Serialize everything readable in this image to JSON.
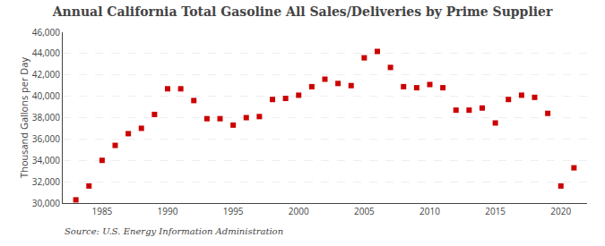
{
  "chart_data": {
    "type": "scatter",
    "title": "Annual California Total Gasoline All Sales/Deliveries by Prime Supplier",
    "ylabel": "Thousand Gallons per Day",
    "annotations": [
      "Source: U.S. Energy Information Administration"
    ],
    "x": [
      1983,
      1984,
      1985,
      1986,
      1987,
      1988,
      1989,
      1990,
      1991,
      1992,
      1993,
      1994,
      1995,
      1996,
      1997,
      1998,
      1999,
      2000,
      2001,
      2002,
      2003,
      2004,
      2005,
      2006,
      2007,
      2008,
      2009,
      2010,
      2011,
      2012,
      2013,
      2014,
      2015,
      2016,
      2017,
      2018,
      2019,
      2020,
      2021
    ],
    "values": [
      30300,
      31600,
      34000,
      35400,
      36500,
      37000,
      38300,
      40700,
      40700,
      39600,
      37900,
      37900,
      37300,
      38000,
      38100,
      39700,
      39800,
      40100,
      40900,
      41600,
      41200,
      41000,
      43600,
      44200,
      42700,
      40900,
      40800,
      41100,
      40800,
      38700,
      38700,
      38900,
      37500,
      39700,
      40100,
      39900,
      38400,
      31600,
      33300
    ],
    "color": "#cc0000",
    "marker": "square",
    "xlim": [
      1982,
      2022
    ],
    "xticks": [
      1985,
      1990,
      1995,
      2000,
      2005,
      2010,
      2015,
      2020
    ],
    "ylim": [
      30000,
      46000
    ],
    "yticks": [
      {
        "value": 30000,
        "label": "30,000"
      },
      {
        "value": 32000,
        "label": "32,000"
      },
      {
        "value": 34000,
        "label": "34,000"
      },
      {
        "value": 36000,
        "label": "36,000"
      },
      {
        "value": 38000,
        "label": "38,000"
      },
      {
        "value": 40000,
        "label": "40,000"
      },
      {
        "value": 42000,
        "label": "42,000"
      },
      {
        "value": 44000,
        "label": "44,000"
      },
      {
        "value": 46000,
        "label": "46,000"
      }
    ],
    "grid": "y"
  }
}
